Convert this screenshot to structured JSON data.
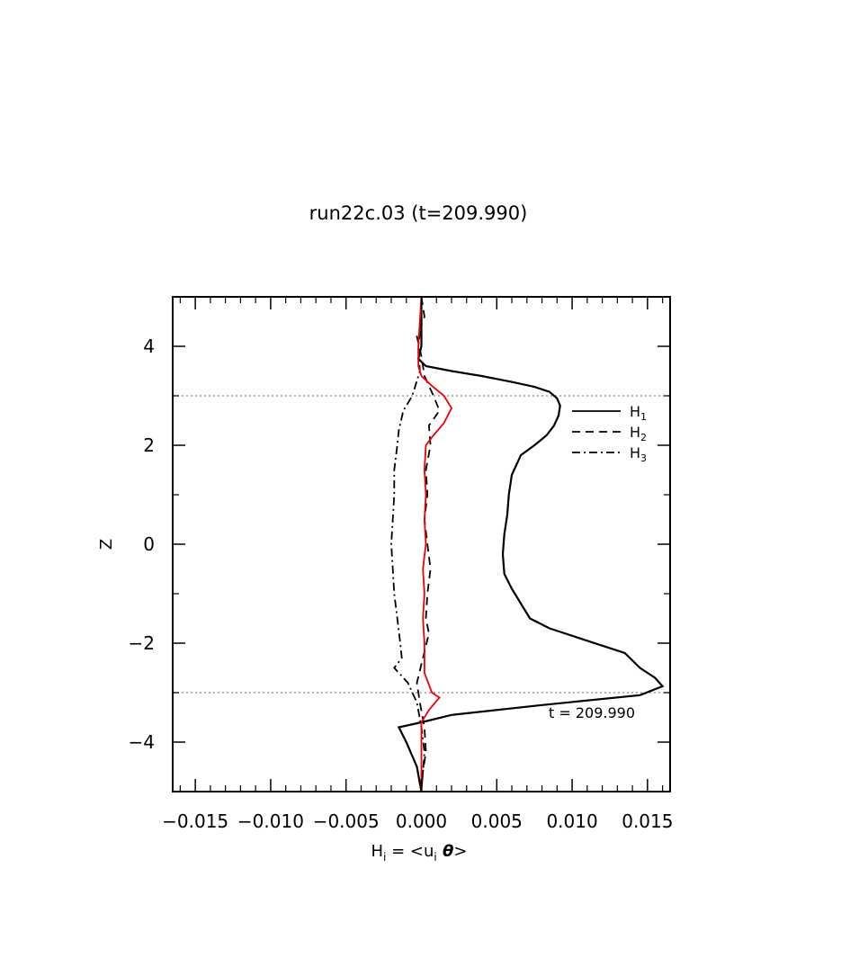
{
  "chart_data": {
    "type": "line",
    "title": "run22c.03 (t=209.990)",
    "xlabel": "H_i = <u_i θ>",
    "xlabel_parts": {
      "main": "H",
      "sub": "i",
      "mid": " = <u",
      "sub2": "i",
      "theta": " θ",
      "end": ">"
    },
    "ylabel": "Z",
    "xlim": [
      -0.0165,
      0.0165
    ],
    "ylim": [
      -5,
      5
    ],
    "xticks": [
      -0.015,
      -0.01,
      -0.005,
      0.0,
      0.005,
      0.01,
      0.015
    ],
    "xtick_labels": [
      "−0.015",
      "−0.010",
      "−0.005",
      "0.000",
      "0.005",
      "0.010",
      "0.015"
    ],
    "yticks": [
      -4,
      -2,
      0,
      2,
      4
    ],
    "ytick_labels": [
      "−4",
      "−2",
      "0",
      "2",
      "4"
    ],
    "hlines": [
      3,
      -3
    ],
    "annotation": "t = 209.990",
    "legend": {
      "placement": "upper-right",
      "entries": [
        {
          "label": "H",
          "sub": "1",
          "style": "solid"
        },
        {
          "label": "H",
          "sub": "2",
          "style": "dashed"
        },
        {
          "label": "H",
          "sub": "3",
          "style": "dashdot"
        }
      ]
    },
    "series": [
      {
        "style": "solid",
        "color": "#000000",
        "points": [
          [
            0.0,
            5.0
          ],
          [
            0.0,
            4.5
          ],
          [
            0.0,
            4.0
          ],
          [
            -0.0002,
            3.75
          ],
          [
            0.0003,
            3.6
          ],
          [
            0.002,
            3.5
          ],
          [
            0.004,
            3.4
          ],
          [
            0.006,
            3.28
          ],
          [
            0.0075,
            3.18
          ],
          [
            0.0085,
            3.08
          ],
          [
            0.009,
            2.95
          ],
          [
            0.0092,
            2.8
          ],
          [
            0.0091,
            2.6
          ],
          [
            0.0088,
            2.4
          ],
          [
            0.0083,
            2.2
          ],
          [
            0.0075,
            2.0
          ],
          [
            0.0066,
            1.8
          ],
          [
            0.006,
            1.4
          ],
          [
            0.0058,
            1.0
          ],
          [
            0.0057,
            0.6
          ],
          [
            0.0055,
            0.2
          ],
          [
            0.0054,
            -0.2
          ],
          [
            0.0055,
            -0.6
          ],
          [
            0.006,
            -0.9
          ],
          [
            0.0066,
            -1.2
          ],
          [
            0.0072,
            -1.5
          ],
          [
            0.0085,
            -1.7
          ],
          [
            0.011,
            -1.95
          ],
          [
            0.0135,
            -2.2
          ],
          [
            0.0145,
            -2.5
          ],
          [
            0.0155,
            -2.7
          ],
          [
            0.016,
            -2.87
          ],
          [
            0.0145,
            -3.05
          ],
          [
            0.008,
            -3.25
          ],
          [
            0.002,
            -3.45
          ],
          [
            0.0,
            -3.6
          ],
          [
            -0.0015,
            -3.7
          ],
          [
            -0.001,
            -4.0
          ],
          [
            -0.0003,
            -4.5
          ],
          [
            0.0,
            -5.0
          ]
        ]
      },
      {
        "style": "dashed",
        "color": "#000000",
        "points": [
          [
            0.0,
            5.0
          ],
          [
            0.0002,
            4.6
          ],
          [
            -0.0003,
            4.2
          ],
          [
            0.0,
            3.8
          ],
          [
            0.0002,
            3.4
          ],
          [
            0.0008,
            3.0
          ],
          [
            0.0012,
            2.7
          ],
          [
            0.0005,
            2.4
          ],
          [
            0.0006,
            2.0
          ],
          [
            0.0003,
            1.5
          ],
          [
            0.0004,
            1.0
          ],
          [
            0.0002,
            0.5
          ],
          [
            0.0004,
            0.0
          ],
          [
            0.0006,
            -0.5
          ],
          [
            0.0004,
            -1.0
          ],
          [
            0.0003,
            -1.5
          ],
          [
            0.0005,
            -1.8
          ],
          [
            0.0001,
            -2.3
          ],
          [
            -0.0003,
            -2.8
          ],
          [
            -0.0001,
            -3.2
          ],
          [
            0.0002,
            -3.7
          ],
          [
            0.0003,
            -4.2
          ],
          [
            0.0001,
            -4.6
          ],
          [
            0.0,
            -5.0
          ]
        ]
      },
      {
        "style": "dashdot",
        "color": "#000000",
        "points": [
          [
            0.0,
            5.0
          ],
          [
            0.0,
            4.5
          ],
          [
            -0.0002,
            4.0
          ],
          [
            -0.0001,
            3.5
          ],
          [
            -0.0006,
            3.0
          ],
          [
            -0.0012,
            2.7
          ],
          [
            -0.0015,
            2.3
          ],
          [
            -0.0016,
            2.0
          ],
          [
            -0.0018,
            1.5
          ],
          [
            -0.0018,
            1.0
          ],
          [
            -0.0019,
            0.5
          ],
          [
            -0.002,
            0.0
          ],
          [
            -0.0019,
            -0.5
          ],
          [
            -0.0018,
            -1.0
          ],
          [
            -0.0016,
            -1.5
          ],
          [
            -0.0014,
            -2.0
          ],
          [
            -0.0013,
            -2.3
          ],
          [
            -0.0018,
            -2.5
          ],
          [
            -0.0009,
            -2.8
          ],
          [
            -0.0003,
            -3.2
          ],
          [
            0.0,
            -3.7
          ],
          [
            0.0002,
            -4.2
          ],
          [
            0.0,
            -5.0
          ]
        ]
      },
      {
        "style": "solid",
        "color": "#ee0000",
        "points": [
          [
            0.0,
            5.0
          ],
          [
            -0.0001,
            4.5
          ],
          [
            -0.0002,
            4.0
          ],
          [
            -0.0002,
            3.6
          ],
          [
            0.0,
            3.4
          ],
          [
            0.0007,
            3.2
          ],
          [
            0.0015,
            3.0
          ],
          [
            0.002,
            2.75
          ],
          [
            0.0015,
            2.45
          ],
          [
            0.0008,
            2.2
          ],
          [
            0.0003,
            2.0
          ],
          [
            0.0002,
            1.5
          ],
          [
            0.0003,
            1.0
          ],
          [
            0.0002,
            0.5
          ],
          [
            0.0003,
            0.0
          ],
          [
            0.0001,
            -0.5
          ],
          [
            0.0002,
            -1.0
          ],
          [
            0.0001,
            -1.5
          ],
          [
            0.0002,
            -2.0
          ],
          [
            0.0002,
            -2.6
          ],
          [
            0.0007,
            -3.0
          ],
          [
            0.0012,
            -3.1
          ],
          [
            0.0005,
            -3.35
          ],
          [
            0.0,
            -3.6
          ],
          [
            0.0,
            -4.2
          ],
          [
            0.0,
            -5.0
          ]
        ]
      }
    ]
  }
}
